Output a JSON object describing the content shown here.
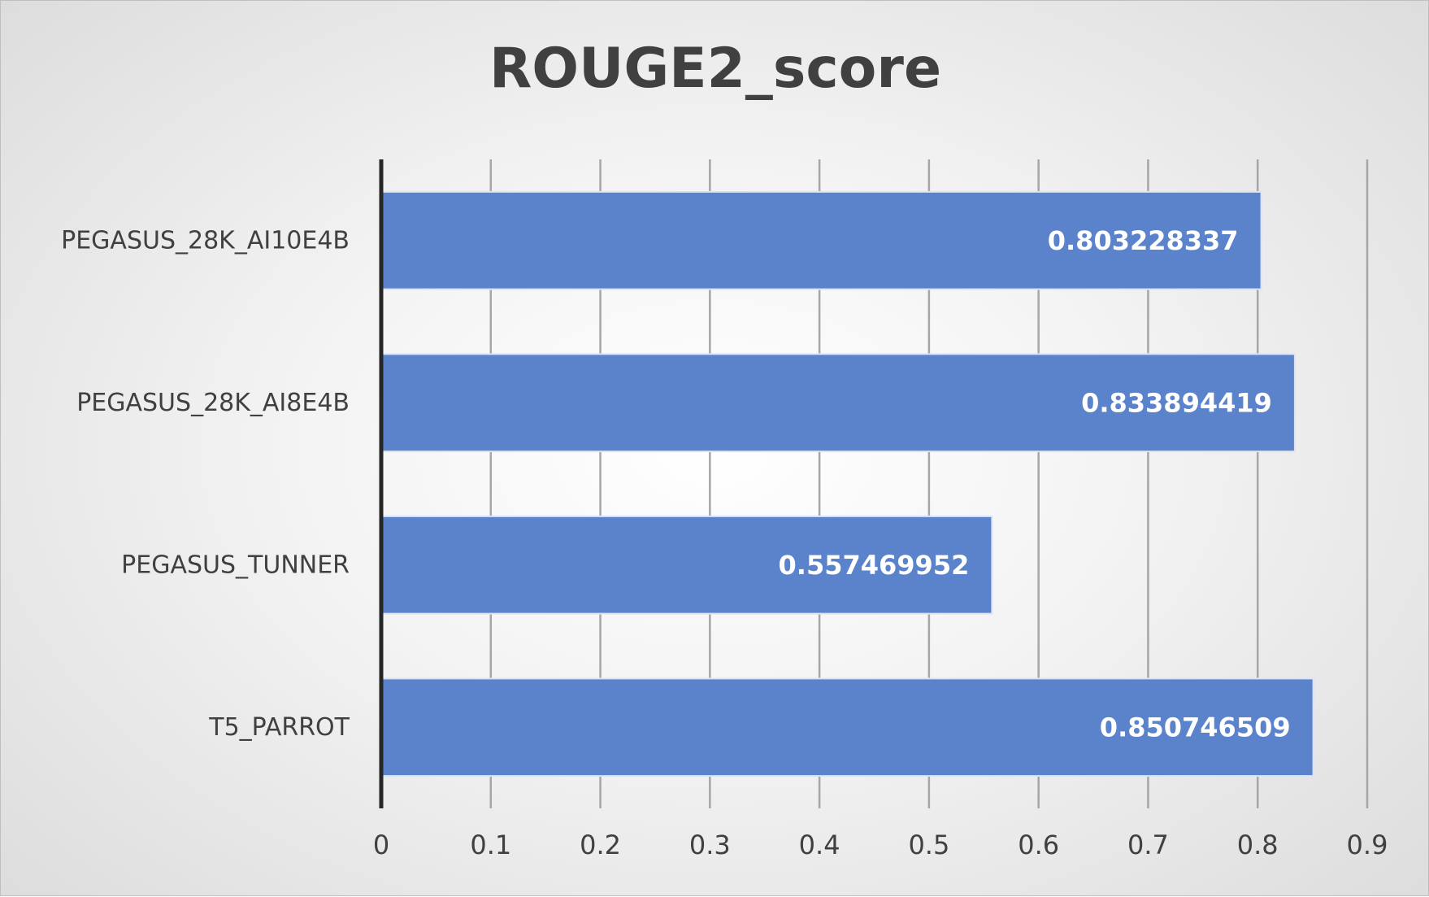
{
  "chart_data": {
    "type": "bar",
    "orientation": "horizontal",
    "title": "ROUGE2_score",
    "categories": [
      "PEGASUS_28K_AI10E4B",
      "PEGASUS_28K_AI8E4B",
      "PEGASUS_TUNNER",
      "T5_PARROT"
    ],
    "values": [
      0.803228337,
      0.833894419,
      0.557469952,
      0.850746509
    ],
    "data_labels": [
      "0.803228337",
      "0.833894419",
      "0.557469952",
      "0.850746509"
    ],
    "xlim": [
      0,
      0.9
    ],
    "xticks": [
      "0",
      "0.1",
      "0.2",
      "0.3",
      "0.4",
      "0.5",
      "0.6",
      "0.7",
      "0.8",
      "0.9"
    ],
    "xlabel": "",
    "ylabel": "",
    "grid": true,
    "legend": "none",
    "colors": {
      "bar": "#5b83cb",
      "bar_edge": "#dbe4f4",
      "grid": "#a6a6a6",
      "axis": "#262626",
      "text": "#404040",
      "data_label": "#ffffff"
    }
  }
}
